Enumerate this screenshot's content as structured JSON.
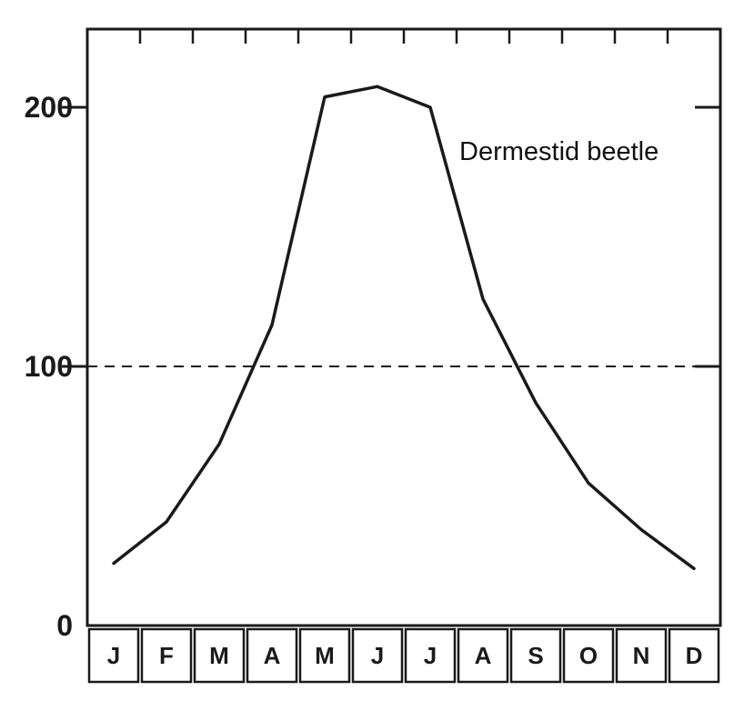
{
  "chart_data": {
    "type": "line",
    "title": "",
    "xlabel": "",
    "ylabel": "",
    "categories": [
      "J",
      "F",
      "M",
      "A",
      "M",
      "J",
      "J",
      "A",
      "S",
      "O",
      "N",
      "D"
    ],
    "series": [
      {
        "x": [
          0.5,
          1.5,
          2.5,
          3.5,
          4.5,
          5.5,
          6.5,
          7.5,
          8.5,
          9.5,
          10.5,
          11.5
        ],
        "values": [
          24,
          40,
          70,
          116,
          204,
          208,
          200,
          126,
          86,
          55,
          37,
          22
        ]
      }
    ],
    "yticks": [
      0,
      100,
      200
    ],
    "ylim": [
      0,
      230
    ],
    "xlim": [
      0,
      12
    ],
    "reference_line": {
      "y": 100,
      "style": "dashed"
    },
    "annotations": [
      {
        "text": "Dermestid beetle"
      }
    ],
    "grid": false,
    "legend": "none",
    "colors": {
      "line": "#1a1a1a",
      "axes": "#1a1a1a",
      "background": "#ffffff"
    }
  }
}
